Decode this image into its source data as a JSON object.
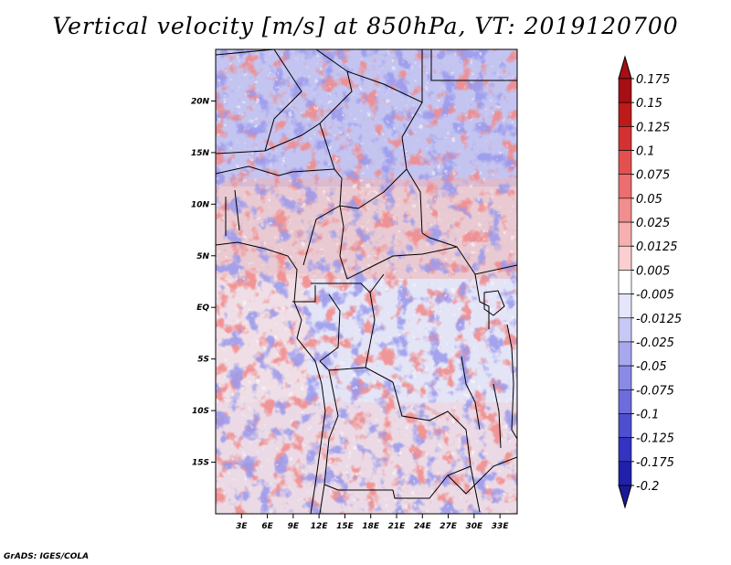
{
  "title": "Vertical velocity [m/s] at 850hPa, VT: 2019120700",
  "credit": "GrADS: IGES/COLA",
  "map": {
    "lon_range": [
      0,
      35
    ],
    "lat_range": [
      -20,
      25
    ],
    "lat_ticks": [
      {
        "value": 20,
        "label": "20N"
      },
      {
        "value": 15,
        "label": "15N"
      },
      {
        "value": 10,
        "label": "10N"
      },
      {
        "value": 5,
        "label": "5N"
      },
      {
        "value": 0,
        "label": "EQ"
      },
      {
        "value": -5,
        "label": "5S"
      },
      {
        "value": -10,
        "label": "10S"
      },
      {
        "value": -15,
        "label": "15S"
      }
    ],
    "lon_ticks": [
      {
        "value": 3,
        "label": "3E"
      },
      {
        "value": 6,
        "label": "6E"
      },
      {
        "value": 9,
        "label": "9E"
      },
      {
        "value": 12,
        "label": "12E"
      },
      {
        "value": 15,
        "label": "15E"
      },
      {
        "value": 18,
        "label": "18E"
      },
      {
        "value": 21,
        "label": "21E"
      },
      {
        "value": 24,
        "label": "24E"
      },
      {
        "value": 27,
        "label": "27E"
      },
      {
        "value": 30,
        "label": "30E"
      },
      {
        "value": 33,
        "label": "33E"
      }
    ]
  },
  "colorbar": {
    "levels": [
      {
        "label": "0.175",
        "color": "#a50f15"
      },
      {
        "label": "0.15",
        "color": "#bd1a1a"
      },
      {
        "label": "0.125",
        "color": "#d23232"
      },
      {
        "label": "0.1",
        "color": "#e35050"
      },
      {
        "label": "0.075",
        "color": "#ec6e6e"
      },
      {
        "label": "0.05",
        "color": "#f28e8e"
      },
      {
        "label": "0.025",
        "color": "#f7b0b0"
      },
      {
        "label": "0.0125",
        "color": "#fbcfcf"
      },
      {
        "label": "0.005",
        "color": "#fde8e8"
      },
      {
        "label": "-0.005",
        "color": "#ffffff"
      },
      {
        "label": "-0.0125",
        "color": "#e6e6fb"
      },
      {
        "label": "-0.025",
        "color": "#c8c8f5"
      },
      {
        "label": "-0.05",
        "color": "#a8a8ef"
      },
      {
        "label": "-0.075",
        "color": "#8a8ae6"
      },
      {
        "label": "-0.1",
        "color": "#6c6cdc"
      },
      {
        "label": "-0.125",
        "color": "#4e4ed0"
      },
      {
        "label": "-0.175",
        "color": "#3434c0"
      },
      {
        "label": "-0.2",
        "color": "#2020ab"
      }
    ],
    "top_color": "#a50f15",
    "bottom_color": "#1a1a99"
  }
}
